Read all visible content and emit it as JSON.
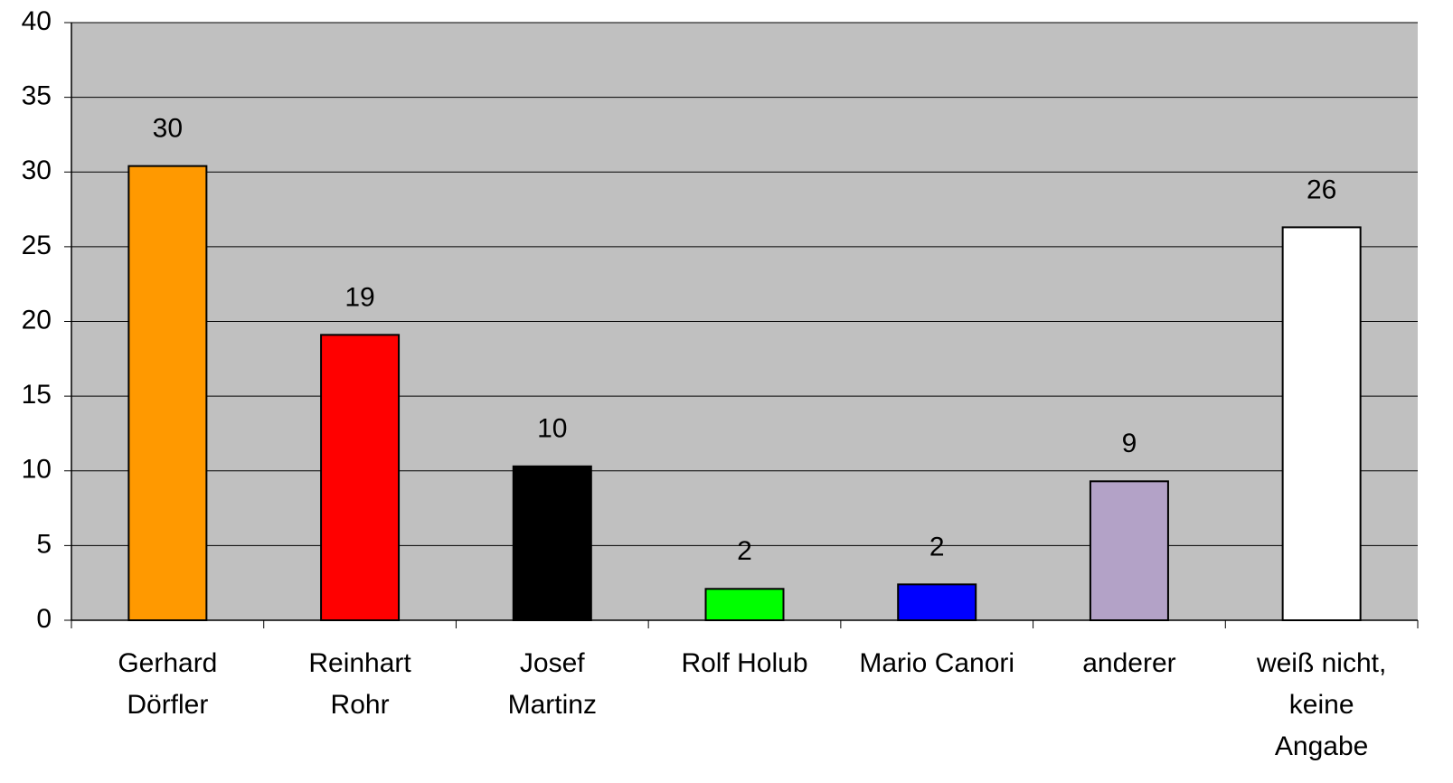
{
  "chart_data": {
    "type": "bar",
    "categories": [
      [
        "Gerhard",
        "Dörfler"
      ],
      [
        "Reinhart",
        "Rohr"
      ],
      [
        "Josef",
        "Martinz"
      ],
      [
        "Rolf Holub"
      ],
      [
        "Mario Canori"
      ],
      [
        "anderer"
      ],
      [
        "weiß nicht,",
        "keine",
        "Angabe"
      ]
    ],
    "values": [
      30.4,
      19.1,
      10.3,
      2.1,
      2.4,
      9.3,
      26.3
    ],
    "value_labels": [
      "30",
      "19",
      "10",
      "2",
      "2",
      "9",
      "26"
    ],
    "colors": [
      "#ff9900",
      "#ff0000",
      "#000000",
      "#00ff00",
      "#0000ff",
      "#b3a2c7",
      "#ffffff"
    ],
    "ylim": [
      0,
      40
    ],
    "yticks": [
      0,
      5,
      10,
      15,
      20,
      25,
      30,
      35,
      40
    ],
    "grid": true
  }
}
